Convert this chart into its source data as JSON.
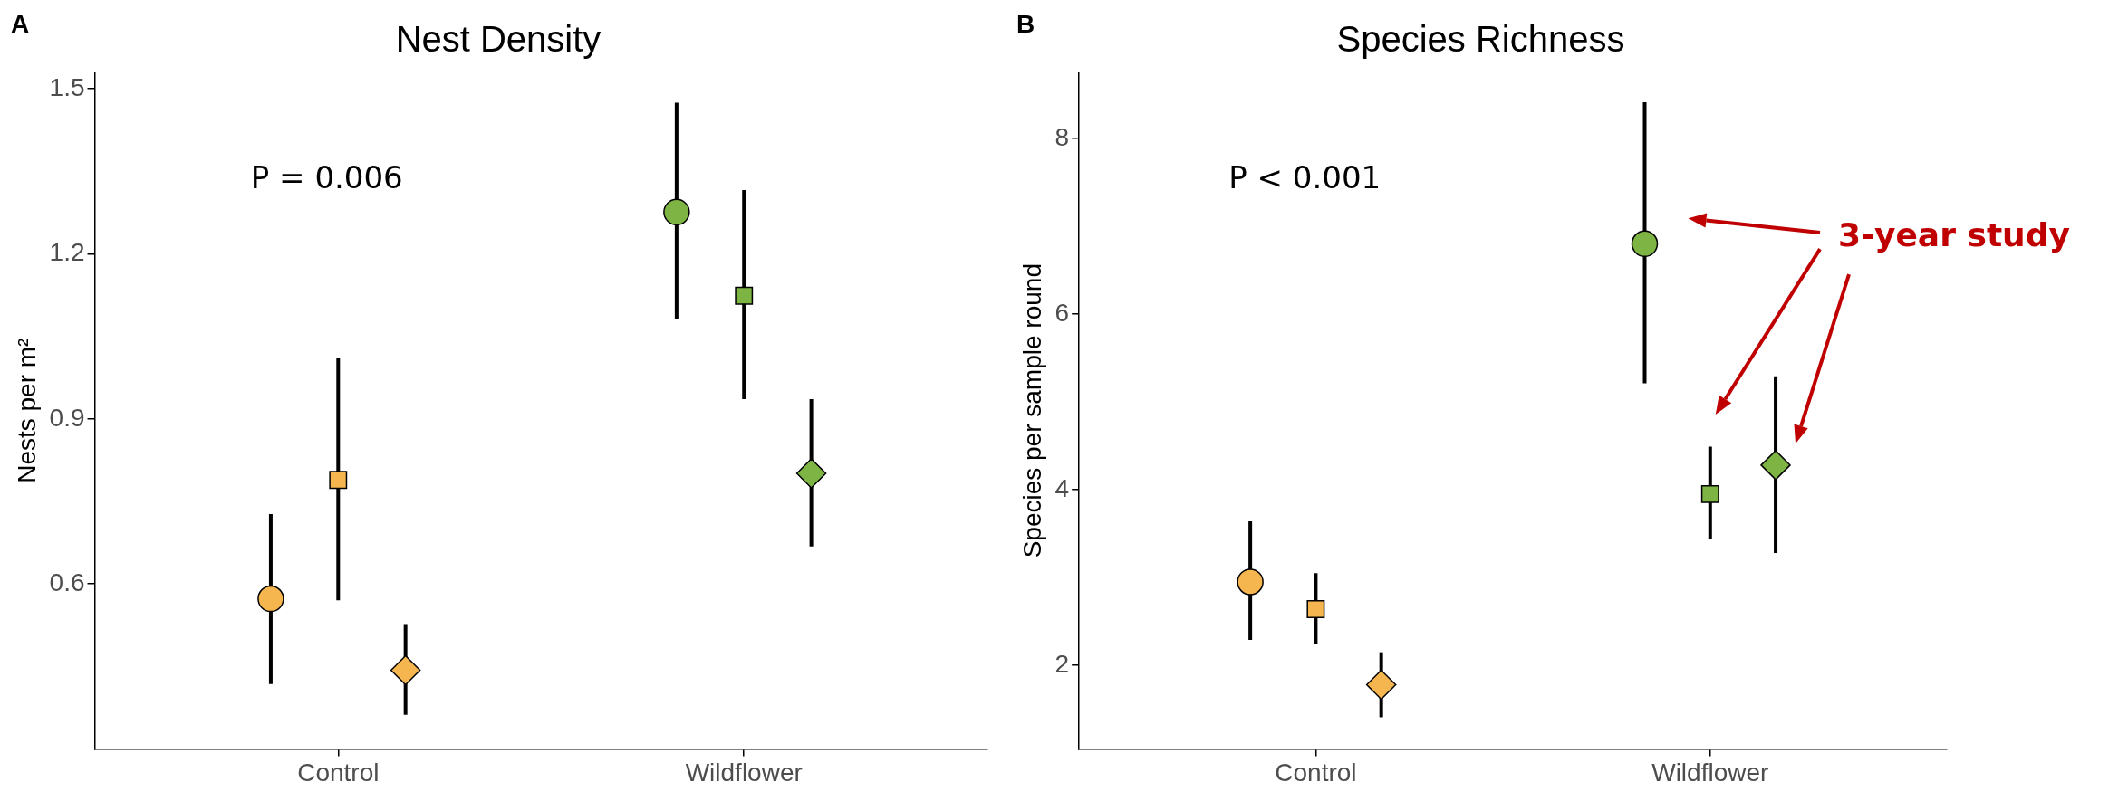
{
  "chart_data": [
    {
      "type": "scatter",
      "title": "Nest Density",
      "ylabel": "Nests per m²",
      "categories": [
        "Control",
        "Wildflower"
      ],
      "series": [
        {
          "marker": "circle",
          "colors": [
            "#f5b54f",
            "#7db443"
          ],
          "values": [
            0.573,
            1.276
          ],
          "errors": [
            [
              0.418,
              0.727
            ],
            [
              1.082,
              1.475
            ]
          ]
        },
        {
          "marker": "square",
          "colors": [
            "#f5b54f",
            "#7db443"
          ],
          "values": [
            0.789,
            1.124
          ],
          "errors": [
            [
              0.57,
              1.01
            ],
            [
              0.936,
              1.316
            ]
          ]
        },
        {
          "marker": "diamond",
          "colors": [
            "#f5b54f",
            "#7db443"
          ],
          "values": [
            0.443,
            0.801
          ],
          "errors": [
            [
              0.362,
              0.527
            ],
            [
              0.668,
              0.936
            ]
          ]
        }
      ],
      "ylim": [
        0.3,
        1.53
      ],
      "yticks": [
        0.6,
        0.9,
        1.2,
        1.5
      ],
      "grid": false,
      "legend": false,
      "annotations": [
        "A",
        "P = 0.006"
      ]
    },
    {
      "type": "scatter",
      "title": "Species Richness",
      "ylabel": "Species per sample round",
      "categories": [
        "Control",
        "Wildflower"
      ],
      "series": [
        {
          "marker": "circle",
          "colors": [
            "#f5b54f",
            "#7db443"
          ],
          "values": [
            2.95,
            6.8
          ],
          "errors": [
            [
              2.29,
              3.64
            ],
            [
              5.21,
              8.41
            ]
          ]
        },
        {
          "marker": "square",
          "colors": [
            "#f5b54f",
            "#7db443"
          ],
          "values": [
            2.64,
            3.95
          ],
          "errors": [
            [
              2.24,
              3.05
            ],
            [
              3.44,
              4.49
            ]
          ]
        },
        {
          "marker": "diamond",
          "colors": [
            "#f5b54f",
            "#7db443"
          ],
          "values": [
            1.78,
            4.28
          ],
          "errors": [
            [
              1.41,
              2.15
            ],
            [
              3.28,
              5.29
            ]
          ]
        }
      ],
      "ylim": [
        1.05,
        8.75
      ],
      "yticks": [
        2,
        4,
        6,
        8
      ],
      "grid": false,
      "legend": false,
      "annotations": [
        "B",
        "P < 0.001",
        "3-year study"
      ]
    }
  ]
}
